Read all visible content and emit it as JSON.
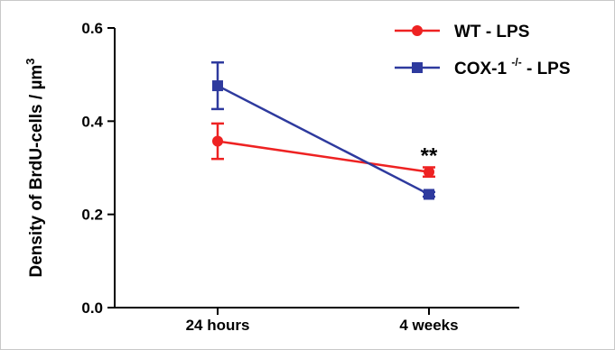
{
  "chart_data": {
    "type": "line",
    "title": "",
    "ylabel": "Density of BrdU-cells / µm",
    "ylabel_sup": "3",
    "xlabel": "",
    "categories": [
      "24 hours",
      "4 weeks"
    ],
    "ylim": [
      0,
      0.6
    ],
    "yticks": [
      0.0,
      0.2,
      0.4,
      0.6
    ],
    "ytick_labels": [
      "0.0",
      "0.2",
      "0.4",
      "0.6"
    ],
    "grid": false,
    "legend_position": "top-right",
    "series": [
      {
        "name": "WT - LPS",
        "name_parts": {
          "main": "WT - LPS",
          "sup": "",
          "tail": ""
        },
        "color": "#ee2222",
        "marker": "circle",
        "values": [
          0.357,
          0.291
        ],
        "errors": [
          0.038,
          0.01
        ]
      },
      {
        "name": "COX-1 -/- - LPS",
        "name_parts": {
          "main": "COX-1 ",
          "sup": "-/-",
          "tail": " - LPS"
        },
        "color": "#2e3a9e",
        "marker": "square",
        "values": [
          0.476,
          0.243
        ],
        "errors": [
          0.05,
          0.005
        ]
      }
    ],
    "annotations": [
      {
        "text": "**",
        "category": "4 weeks",
        "y": 0.33
      }
    ]
  }
}
